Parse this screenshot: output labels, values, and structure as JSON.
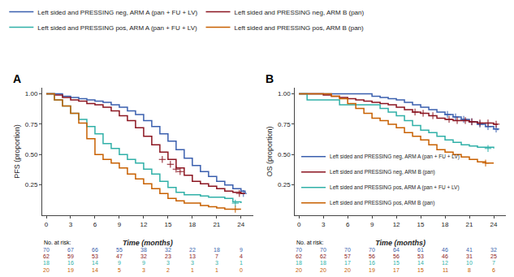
{
  "chart_data": [
    {
      "type": "step",
      "title": "A",
      "xlabel": "Time (months)",
      "ylabel": "PFS (proportion)",
      "xlim": [
        -0.5,
        25.5
      ],
      "xticks": [
        0,
        3,
        6,
        9,
        12,
        15,
        18,
        21,
        24
      ],
      "ylim": [
        0,
        1.05
      ],
      "yticks": [
        0.25,
        {
          "value": 0.5,
          "label": "0.50"
        },
        0.75,
        {
          "value": 1,
          "label": "1.00"
        }
      ],
      "grid": false,
      "legend": "top",
      "at_risk_label": "No. at risk:",
      "series": [
        {
          "name": "Left sided and PRESSING neg, ARM A (pan + FU + LV)",
          "color": "#3a5fae",
          "marker": "cross",
          "x": [
            0,
            1,
            2,
            3,
            4,
            5,
            6,
            7,
            8,
            9,
            10,
            11,
            12,
            13,
            14,
            15,
            16,
            17,
            18,
            19,
            20,
            21,
            22,
            23,
            24,
            24.5
          ],
          "values": [
            1.0,
            1.0,
            0.98,
            0.97,
            0.96,
            0.95,
            0.94,
            0.93,
            0.91,
            0.89,
            0.86,
            0.83,
            0.78,
            0.73,
            0.67,
            0.61,
            0.54,
            0.47,
            0.41,
            0.36,
            0.32,
            0.28,
            0.25,
            0.22,
            0.2,
            0.18
          ],
          "censor_x": [
            24.3
          ],
          "censor_values": [
            0.18
          ],
          "at_risk": [
            70,
            67,
            66,
            55,
            38,
            32,
            22,
            18,
            9
          ]
        },
        {
          "name": "Left sided and PRESSING neg, ARM B (pan)",
          "color": "#8b1520",
          "marker": "cross",
          "x": [
            0,
            1,
            2,
            3,
            4,
            5,
            6,
            7,
            8,
            9,
            10,
            11,
            12,
            13,
            14,
            15,
            16,
            17,
            18,
            19,
            20,
            21,
            22,
            23,
            24,
            24.5
          ],
          "values": [
            1.0,
            0.99,
            0.97,
            0.95,
            0.94,
            0.92,
            0.91,
            0.89,
            0.86,
            0.82,
            0.78,
            0.72,
            0.65,
            0.58,
            0.52,
            0.46,
            0.39,
            0.33,
            0.28,
            0.26,
            0.24,
            0.22,
            0.2,
            0.19,
            0.18,
            0.18
          ],
          "censor_x": [
            14.3,
            15.3,
            16.0,
            16.5,
            23.8
          ],
          "censor_values": [
            0.46,
            0.42,
            0.38,
            0.36,
            0.18
          ],
          "at_risk": [
            62,
            59,
            53,
            47,
            32,
            23,
            13,
            7,
            4
          ]
        },
        {
          "name": "Left sided and PRESSING pos, ARM A (pan + FU + LV)",
          "color": "#30b0a8",
          "marker": "cross",
          "x": [
            0,
            1,
            2,
            3,
            4,
            5,
            6,
            7,
            8,
            9,
            10,
            11,
            12,
            13,
            14,
            15,
            16,
            17,
            18,
            19,
            20,
            21,
            22,
            23,
            24
          ],
          "values": [
            1.0,
            0.95,
            0.9,
            0.84,
            0.79,
            0.73,
            0.67,
            0.59,
            0.55,
            0.5,
            0.46,
            0.43,
            0.38,
            0.34,
            0.28,
            0.23,
            0.19,
            0.17,
            0.17,
            0.16,
            0.15,
            0.15,
            0.14,
            0.11,
            0.1
          ],
          "censor_x": [
            23.3
          ],
          "censor_values": [
            0.1
          ],
          "at_risk": [
            18,
            16,
            14,
            9,
            9,
            3,
            3,
            3,
            1
          ]
        },
        {
          "name": "Left sided and PRESSING pos, ARM B (pan)",
          "color": "#c86000",
          "marker": "cross",
          "x": [
            0,
            1,
            2,
            3,
            4,
            5,
            6,
            7,
            8,
            9,
            10,
            11,
            12,
            13,
            14,
            15,
            16,
            17,
            18,
            19,
            20,
            21,
            22,
            23,
            24
          ],
          "values": [
            1.0,
            0.95,
            0.9,
            0.84,
            0.76,
            0.63,
            0.5,
            0.46,
            0.43,
            0.39,
            0.34,
            0.3,
            0.26,
            0.22,
            0.18,
            0.14,
            0.12,
            0.1,
            0.1,
            0.08,
            0.07,
            0.06,
            0.05,
            0.05,
            0.05
          ],
          "censor_x": [
            23.3
          ],
          "censor_values": [
            0.05
          ],
          "at_risk": [
            20,
            19,
            14,
            5,
            3,
            2,
            1,
            1,
            0
          ]
        }
      ]
    },
    {
      "type": "step",
      "title": "B",
      "xlabel": "Time (months)",
      "ylabel": "OS (proportion)",
      "xlim": [
        -0.5,
        25.5
      ],
      "xticks": [
        0,
        3,
        6,
        9,
        12,
        15,
        18,
        21,
        24
      ],
      "ylim": [
        0,
        1.05
      ],
      "yticks": [
        0.25,
        {
          "value": 0.5,
          "label": "0.50"
        },
        0.75,
        {
          "value": 1,
          "label": "1.00"
        }
      ],
      "grid": false,
      "legend": "lower left",
      "at_risk_label": "No. at risk:",
      "series": [
        {
          "name": "Left sided and PRESSING neg, ARM A (pan + FU + LV)",
          "color": "#3a5fae",
          "marker": "cross",
          "x": [
            0,
            1,
            2,
            3,
            4,
            5,
            6,
            7,
            8,
            9,
            10,
            11,
            12,
            13,
            14,
            15,
            16,
            17,
            18,
            19,
            20,
            21,
            22,
            23,
            24,
            24.5
          ],
          "values": [
            1.0,
            1.0,
            1.0,
            1.0,
            1.0,
            1.0,
            1.0,
            1.0,
            1.0,
            0.98,
            0.97,
            0.96,
            0.95,
            0.93,
            0.91,
            0.89,
            0.87,
            0.85,
            0.83,
            0.81,
            0.79,
            0.77,
            0.75,
            0.73,
            0.71,
            0.7
          ],
          "censor_x": [
            18.3,
            19.3,
            20.3,
            21.3,
            22.3,
            23.3,
            24.3
          ],
          "censor_values": [
            0.83,
            0.81,
            0.79,
            0.77,
            0.75,
            0.73,
            0.71
          ],
          "at_risk": [
            70,
            70,
            70,
            70,
            64,
            61,
            46,
            41,
            32
          ]
        },
        {
          "name": "Left sided and PRESSING neg, ARM B (pan)",
          "color": "#8b1520",
          "marker": "cross",
          "x": [
            0,
            1,
            2,
            3,
            4,
            5,
            6,
            7,
            8,
            9,
            10,
            11,
            12,
            13,
            14,
            15,
            16,
            17,
            18,
            19,
            20,
            21,
            22,
            23,
            24,
            24.5
          ],
          "values": [
            1.0,
            1.0,
            1.0,
            0.99,
            0.98,
            0.97,
            0.96,
            0.95,
            0.94,
            0.93,
            0.92,
            0.91,
            0.89,
            0.87,
            0.85,
            0.84,
            0.82,
            0.8,
            0.79,
            0.78,
            0.78,
            0.77,
            0.76,
            0.76,
            0.75,
            0.75
          ],
          "censor_x": [
            14.3,
            15.3,
            16.5,
            18.5,
            19.5,
            20.5,
            21.3,
            22.3,
            23.3,
            24.3
          ],
          "censor_values": [
            0.85,
            0.84,
            0.82,
            0.79,
            0.78,
            0.78,
            0.77,
            0.76,
            0.76,
            0.75
          ],
          "at_risk": [
            62,
            62,
            57,
            56,
            56,
            53,
            46,
            31,
            25
          ]
        },
        {
          "name": "Left sided and PRESSING pos, ARM A (pan + FU + LV)",
          "color": "#30b0a8",
          "marker": "cross",
          "x": [
            0,
            1,
            2,
            3,
            4,
            5,
            6,
            7,
            8,
            9,
            10,
            11,
            12,
            13,
            14,
            15,
            16,
            17,
            18,
            19,
            20,
            21,
            22,
            23,
            24
          ],
          "values": [
            1.0,
            0.95,
            0.95,
            0.95,
            0.95,
            0.91,
            0.91,
            0.91,
            0.91,
            0.91,
            0.88,
            0.85,
            0.82,
            0.78,
            0.74,
            0.7,
            0.68,
            0.65,
            0.62,
            0.6,
            0.58,
            0.57,
            0.56,
            0.56,
            0.55
          ],
          "censor_x": [
            23.3
          ],
          "censor_values": [
            0.55
          ],
          "at_risk": [
            18,
            18,
            17,
            16,
            15,
            14,
            12,
            10,
            7
          ]
        },
        {
          "name": "Left sided and PRESSING pos, ARM B (pan)",
          "color": "#c86000",
          "marker": "cross",
          "x": [
            0,
            1,
            2,
            3,
            4,
            5,
            6,
            7,
            8,
            9,
            10,
            11,
            12,
            13,
            14,
            15,
            16,
            17,
            18,
            19,
            20,
            21,
            22,
            23,
            24
          ],
          "values": [
            1.0,
            1.0,
            1.0,
            1.0,
            0.98,
            0.96,
            0.92,
            0.88,
            0.84,
            0.8,
            0.78,
            0.75,
            0.72,
            0.68,
            0.65,
            0.62,
            0.58,
            0.54,
            0.52,
            0.5,
            0.48,
            0.46,
            0.44,
            0.43,
            0.43
          ],
          "censor_x": [
            23.0
          ],
          "censor_values": [
            0.43
          ],
          "at_risk": [
            20,
            20,
            20,
            19,
            17,
            15,
            11,
            8,
            6
          ]
        }
      ]
    }
  ]
}
